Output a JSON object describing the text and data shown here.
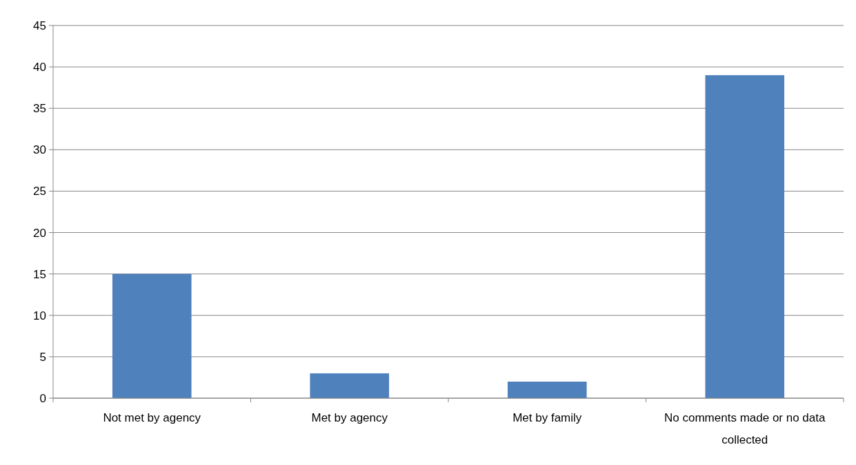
{
  "chart_data": {
    "type": "bar",
    "categories": [
      "Not met by agency",
      "Met by agency",
      "Met by family",
      "No comments made or no data collected"
    ],
    "values": [
      15,
      3,
      2,
      39
    ],
    "color": "#4f81bd",
    "ylim": [
      0,
      45
    ],
    "yticks": [
      0,
      5,
      10,
      15,
      20,
      25,
      30,
      35,
      40,
      45
    ],
    "grid": "y"
  }
}
